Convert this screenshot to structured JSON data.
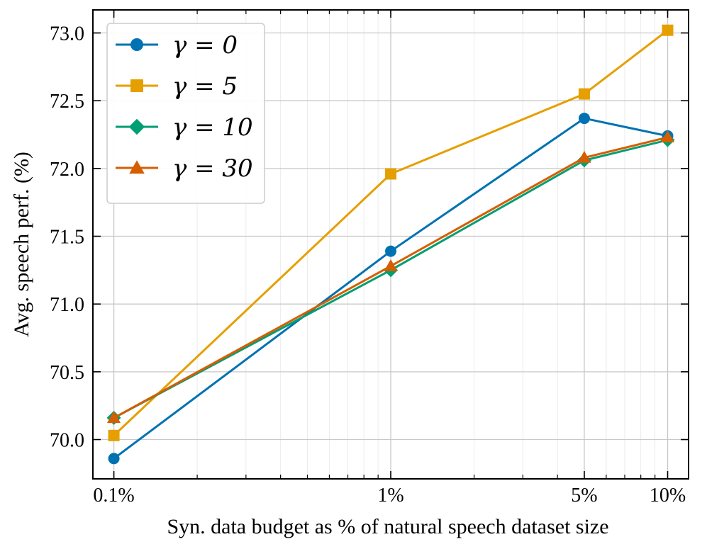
{
  "chart_data": {
    "type": "line",
    "xlabel": "Syn. data budget as % of natural speech dataset size",
    "ylabel": "Avg. speech perf. (%)",
    "x_scale": "log",
    "x": [
      0.1,
      1,
      5,
      10
    ],
    "x_tick_labels": [
      "0.1%",
      "1%",
      "5%",
      "10%"
    ],
    "xlim": [
      0.084,
      11.9
    ],
    "ylim": [
      69.71,
      73.17
    ],
    "y_ticks": [
      70.0,
      70.5,
      71.0,
      71.5,
      72.0,
      72.5,
      73.0
    ],
    "y_tick_labels": [
      "70.0",
      "70.5",
      "71.0",
      "71.5",
      "72.0",
      "72.5",
      "73.0"
    ],
    "grid": true,
    "legend_position": "upper-left",
    "series": [
      {
        "name": "γ = 0",
        "values": [
          69.86,
          71.39,
          72.37,
          72.24
        ],
        "color": "#0072b2",
        "marker": "circle"
      },
      {
        "name": "γ = 5",
        "values": [
          70.03,
          71.96,
          72.55,
          73.02
        ],
        "color": "#e69f00",
        "marker": "square"
      },
      {
        "name": "γ = 10",
        "values": [
          70.16,
          71.25,
          72.06,
          72.21
        ],
        "color": "#009e73",
        "marker": "diamond"
      },
      {
        "name": "γ = 30",
        "values": [
          70.16,
          71.28,
          72.08,
          72.23
        ],
        "color": "#d55e00",
        "marker": "triangle"
      }
    ]
  }
}
